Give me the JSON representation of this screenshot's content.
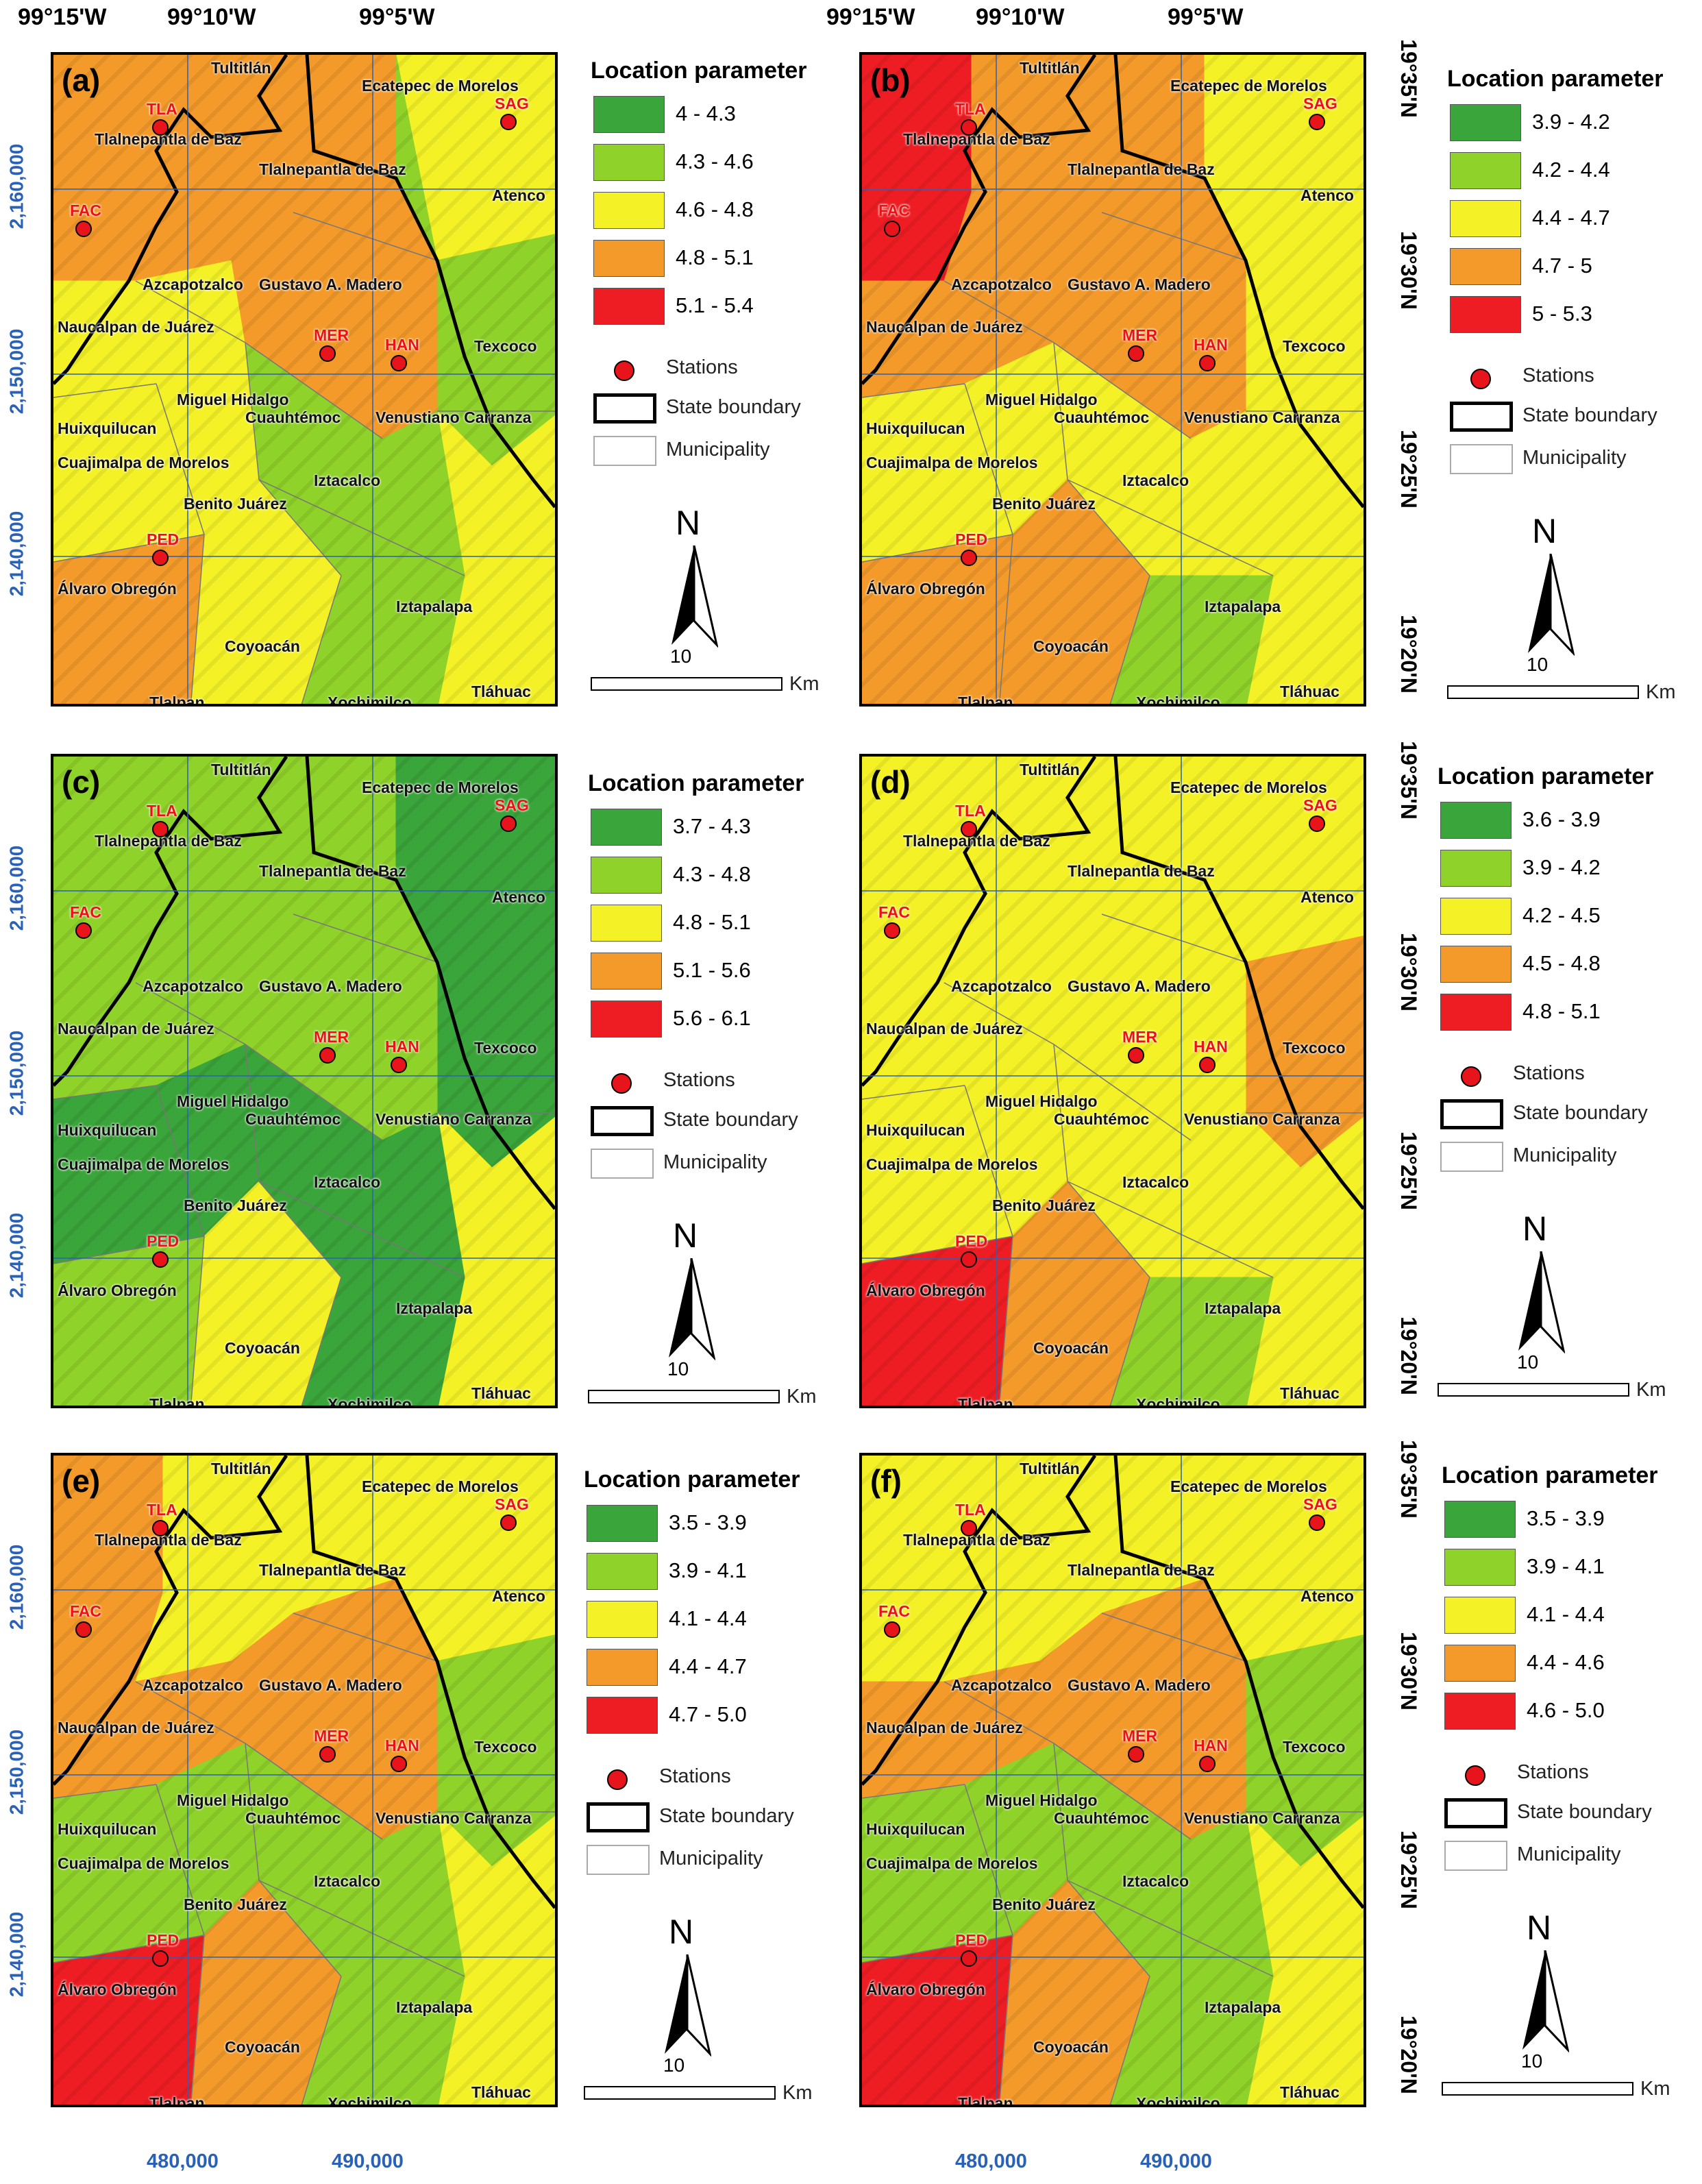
{
  "axes": {
    "top_lon": [
      "99°15'W",
      "99°10'W",
      "99°5'W"
    ],
    "bottom_easting": [
      "480,000",
      "490,000"
    ],
    "left_northing": [
      "2,160,000",
      "2,150,000",
      "2,140,000"
    ],
    "right_lat": [
      "19°35'N",
      "19°30'N",
      "19°25'N",
      "19°20'N"
    ]
  },
  "municipalities": [
    "Tultitlán",
    "Ecatepec de Morelos",
    "Tlalnepantla de Baz",
    "Tlalnepantla de Baz",
    "Atenco",
    "Azcapotzalco",
    "Gustavo A. Madero",
    "Naucalpan de Juárez",
    "Texcoco",
    "Miguel Hidalgo",
    "Cuauhtémoc",
    "Venustiano Carranza",
    "Huixquilucan",
    "Cuajimalpa de Morelos",
    "Iztacalco",
    "Benito Juárez",
    "Álvaro Obregón",
    "Iztapalapa",
    "Coyoacán",
    "Tlalpan",
    "Xochimilco",
    "Tláhuac"
  ],
  "stations": [
    "TLA",
    "SAG",
    "FAC",
    "MER",
    "HAN",
    "PED"
  ],
  "legend_common": {
    "title": "Location parameter",
    "stations_label": "Stations",
    "state_label": "State boundary",
    "municipality_label": "Municipality",
    "north_label": "N",
    "scale_value": "10",
    "scale_unit": "Km"
  },
  "class_colors": [
    "#3aa53a",
    "#8fd22a",
    "#f4f227",
    "#f39a2a",
    "#ee1d23"
  ],
  "panels": [
    {
      "label": "(a)",
      "classes": [
        "4 - 4.3",
        "4.3 - 4.6",
        "4.6 - 4.8",
        "4.8 - 5.1",
        "5.1 - 5.4"
      ],
      "zone_classes": [
        3,
        3,
        2,
        1,
        2,
        3,
        2,
        2,
        1,
        1,
        3,
        2,
        1
      ]
    },
    {
      "label": "(b)",
      "classes": [
        "3.9 - 4.2",
        "4.2 - 4.4",
        "4.4 - 4.7",
        "4.7 - 5",
        "5 - 5.3"
      ],
      "zone_classes": [
        4,
        3,
        2,
        2,
        3,
        3,
        2,
        2,
        2,
        1,
        3,
        3,
        2
      ]
    },
    {
      "label": "(c)",
      "classes": [
        "3.7 - 4.3",
        "4.3 - 4.8",
        "4.8 - 5.1",
        "5.1 - 5.6",
        "5.6 - 6.1"
      ],
      "zone_classes": [
        1,
        1,
        0,
        0,
        1,
        1,
        2,
        0,
        0,
        0,
        1,
        2,
        0
      ]
    },
    {
      "label": "(d)",
      "classes": [
        "3.6 - 3.9",
        "3.9 - 4.2",
        "4.2 - 4.5",
        "4.5 - 4.8",
        "4.8 - 5.1"
      ],
      "zone_classes": [
        2,
        2,
        2,
        3,
        2,
        2,
        2,
        2,
        2,
        1,
        4,
        3,
        2
      ]
    },
    {
      "label": "(e)",
      "classes": [
        "3.5 - 3.9",
        "3.9 - 4.1",
        "4.1 - 4.4",
        "4.4 - 4.7",
        "4.7 - 5.0"
      ],
      "zone_classes": [
        3,
        2,
        2,
        1,
        3,
        3,
        2,
        1,
        1,
        1,
        4,
        3,
        2
      ]
    },
    {
      "label": "(f)",
      "classes": [
        "3.5 - 3.9",
        "3.9 - 4.1",
        "4.1 - 4.4",
        "4.4 - 4.6",
        "4.6 - 5.0"
      ],
      "zone_classes": [
        2,
        2,
        2,
        1,
        3,
        3,
        2,
        1,
        1,
        1,
        4,
        3,
        2
      ]
    }
  ]
}
